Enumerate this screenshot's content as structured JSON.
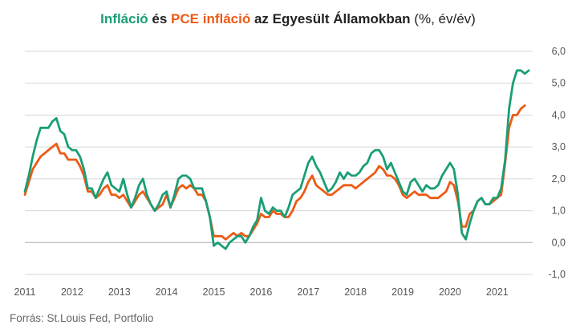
{
  "title": {
    "part1": "Infláció",
    "part2": " és ",
    "part3": "PCE infláció",
    "part4": " az Egyesült Államokban",
    "part5": " (%, év/év)"
  },
  "source": "Forrás: St.Louis Fed, Portfolio",
  "colors": {
    "cpi": "#1a9e77",
    "pce": "#ee5a14",
    "grid": "#d6d6d6",
    "zero": "#aaaaaa",
    "text": "#555555"
  },
  "chart_data": {
    "type": "line",
    "ylim": [
      -1,
      6
    ],
    "yticks": [
      "-1,0",
      "0,0",
      "1,0",
      "2,0",
      "3,0",
      "4,0",
      "5,0",
      "6,0"
    ],
    "ytick_values": [
      -1,
      0,
      1,
      2,
      3,
      4,
      5,
      6
    ],
    "xlim": [
      2011,
      2021.75
    ],
    "xticks": [
      "2011",
      "2012",
      "2013",
      "2014",
      "2015",
      "2016",
      "2017",
      "2018",
      "2019",
      "2020",
      "2021"
    ],
    "xtick_values": [
      2011,
      2012,
      2013,
      2014,
      2015,
      2016,
      2017,
      2018,
      2019,
      2020,
      2021
    ],
    "grid": true,
    "series": [
      {
        "name": "Infláció",
        "key": "cpi",
        "values": [
          [
            2011.0,
            1.6
          ],
          [
            2011.083,
            2.1
          ],
          [
            2011.167,
            2.7
          ],
          [
            2011.25,
            3.2
          ],
          [
            2011.333,
            3.6
          ],
          [
            2011.417,
            3.6
          ],
          [
            2011.5,
            3.6
          ],
          [
            2011.583,
            3.8
          ],
          [
            2011.667,
            3.9
          ],
          [
            2011.75,
            3.5
          ],
          [
            2011.833,
            3.4
          ],
          [
            2011.917,
            3.0
          ],
          [
            2012.0,
            2.9
          ],
          [
            2012.083,
            2.9
          ],
          [
            2012.167,
            2.7
          ],
          [
            2012.25,
            2.3
          ],
          [
            2012.333,
            1.7
          ],
          [
            2012.417,
            1.7
          ],
          [
            2012.5,
            1.4
          ],
          [
            2012.583,
            1.7
          ],
          [
            2012.667,
            2.0
          ],
          [
            2012.75,
            2.2
          ],
          [
            2012.833,
            1.8
          ],
          [
            2012.917,
            1.7
          ],
          [
            2013.0,
            1.6
          ],
          [
            2013.083,
            2.0
          ],
          [
            2013.167,
            1.5
          ],
          [
            2013.25,
            1.1
          ],
          [
            2013.333,
            1.4
          ],
          [
            2013.417,
            1.8
          ],
          [
            2013.5,
            2.0
          ],
          [
            2013.583,
            1.5
          ],
          [
            2013.667,
            1.2
          ],
          [
            2013.75,
            1.0
          ],
          [
            2013.833,
            1.2
          ],
          [
            2013.917,
            1.5
          ],
          [
            2014.0,
            1.6
          ],
          [
            2014.083,
            1.1
          ],
          [
            2014.167,
            1.5
          ],
          [
            2014.25,
            2.0
          ],
          [
            2014.333,
            2.1
          ],
          [
            2014.417,
            2.1
          ],
          [
            2014.5,
            2.0
          ],
          [
            2014.583,
            1.7
          ],
          [
            2014.667,
            1.7
          ],
          [
            2014.75,
            1.7
          ],
          [
            2014.833,
            1.3
          ],
          [
            2014.917,
            0.8
          ],
          [
            2015.0,
            -0.1
          ],
          [
            2015.083,
            0.0
          ],
          [
            2015.167,
            -0.1
          ],
          [
            2015.25,
            -0.2
          ],
          [
            2015.333,
            0.0
          ],
          [
            2015.417,
            0.1
          ],
          [
            2015.5,
            0.2
          ],
          [
            2015.583,
            0.2
          ],
          [
            2015.667,
            0.0
          ],
          [
            2015.75,
            0.2
          ],
          [
            2015.833,
            0.5
          ],
          [
            2015.917,
            0.7
          ],
          [
            2016.0,
            1.4
          ],
          [
            2016.083,
            1.0
          ],
          [
            2016.167,
            0.9
          ],
          [
            2016.25,
            1.1
          ],
          [
            2016.333,
            1.0
          ],
          [
            2016.417,
            1.0
          ],
          [
            2016.5,
            0.8
          ],
          [
            2016.583,
            1.1
          ],
          [
            2016.667,
            1.5
          ],
          [
            2016.75,
            1.6
          ],
          [
            2016.833,
            1.7
          ],
          [
            2016.917,
            2.1
          ],
          [
            2017.0,
            2.5
          ],
          [
            2017.083,
            2.7
          ],
          [
            2017.167,
            2.4
          ],
          [
            2017.25,
            2.2
          ],
          [
            2017.333,
            1.9
          ],
          [
            2017.417,
            1.6
          ],
          [
            2017.5,
            1.7
          ],
          [
            2017.583,
            1.9
          ],
          [
            2017.667,
            2.2
          ],
          [
            2017.75,
            2.0
          ],
          [
            2017.833,
            2.2
          ],
          [
            2017.917,
            2.1
          ],
          [
            2018.0,
            2.1
          ],
          [
            2018.083,
            2.2
          ],
          [
            2018.167,
            2.4
          ],
          [
            2018.25,
            2.5
          ],
          [
            2018.333,
            2.8
          ],
          [
            2018.417,
            2.9
          ],
          [
            2018.5,
            2.9
          ],
          [
            2018.583,
            2.7
          ],
          [
            2018.667,
            2.3
          ],
          [
            2018.75,
            2.5
          ],
          [
            2018.833,
            2.2
          ],
          [
            2018.917,
            1.9
          ],
          [
            2019.0,
            1.6
          ],
          [
            2019.083,
            1.5
          ],
          [
            2019.167,
            1.9
          ],
          [
            2019.25,
            2.0
          ],
          [
            2019.333,
            1.8
          ],
          [
            2019.417,
            1.6
          ],
          [
            2019.5,
            1.8
          ],
          [
            2019.583,
            1.7
          ],
          [
            2019.667,
            1.7
          ],
          [
            2019.75,
            1.8
          ],
          [
            2019.833,
            2.1
          ],
          [
            2019.917,
            2.3
          ],
          [
            2020.0,
            2.5
          ],
          [
            2020.083,
            2.3
          ],
          [
            2020.167,
            1.5
          ],
          [
            2020.25,
            0.3
          ],
          [
            2020.333,
            0.1
          ],
          [
            2020.417,
            0.6
          ],
          [
            2020.5,
            1.0
          ],
          [
            2020.583,
            1.3
          ],
          [
            2020.667,
            1.4
          ],
          [
            2020.75,
            1.2
          ],
          [
            2020.833,
            1.2
          ],
          [
            2020.917,
            1.4
          ],
          [
            2021.0,
            1.4
          ],
          [
            2021.083,
            1.7
          ],
          [
            2021.167,
            2.6
          ],
          [
            2021.25,
            4.2
          ],
          [
            2021.333,
            5.0
          ],
          [
            2021.417,
            5.4
          ],
          [
            2021.5,
            5.4
          ],
          [
            2021.583,
            5.3
          ],
          [
            2021.667,
            5.4
          ]
        ]
      },
      {
        "name": "PCE infláció",
        "key": "pce",
        "values": [
          [
            2011.0,
            1.5
          ],
          [
            2011.083,
            1.9
          ],
          [
            2011.167,
            2.3
          ],
          [
            2011.25,
            2.5
          ],
          [
            2011.333,
            2.7
          ],
          [
            2011.417,
            2.8
          ],
          [
            2011.5,
            2.9
          ],
          [
            2011.583,
            3.0
          ],
          [
            2011.667,
            3.1
          ],
          [
            2011.75,
            2.8
          ],
          [
            2011.833,
            2.8
          ],
          [
            2011.917,
            2.6
          ],
          [
            2012.0,
            2.6
          ],
          [
            2012.083,
            2.6
          ],
          [
            2012.167,
            2.4
          ],
          [
            2012.25,
            2.1
          ],
          [
            2012.333,
            1.6
          ],
          [
            2012.417,
            1.6
          ],
          [
            2012.5,
            1.4
          ],
          [
            2012.583,
            1.5
          ],
          [
            2012.667,
            1.7
          ],
          [
            2012.75,
            1.8
          ],
          [
            2012.833,
            1.5
          ],
          [
            2012.917,
            1.5
          ],
          [
            2013.0,
            1.4
          ],
          [
            2013.083,
            1.5
          ],
          [
            2013.167,
            1.3
          ],
          [
            2013.25,
            1.1
          ],
          [
            2013.333,
            1.3
          ],
          [
            2013.417,
            1.5
          ],
          [
            2013.5,
            1.6
          ],
          [
            2013.583,
            1.4
          ],
          [
            2013.667,
            1.2
          ],
          [
            2013.75,
            1.0
          ],
          [
            2013.833,
            1.1
          ],
          [
            2013.917,
            1.2
          ],
          [
            2014.0,
            1.5
          ],
          [
            2014.083,
            1.1
          ],
          [
            2014.167,
            1.4
          ],
          [
            2014.25,
            1.7
          ],
          [
            2014.333,
            1.8
          ],
          [
            2014.417,
            1.7
          ],
          [
            2014.5,
            1.8
          ],
          [
            2014.583,
            1.7
          ],
          [
            2014.667,
            1.5
          ],
          [
            2014.75,
            1.5
          ],
          [
            2014.833,
            1.3
          ],
          [
            2014.917,
            0.8
          ],
          [
            2015.0,
            0.2
          ],
          [
            2015.083,
            0.2
          ],
          [
            2015.167,
            0.2
          ],
          [
            2015.25,
            0.1
          ],
          [
            2015.333,
            0.2
          ],
          [
            2015.417,
            0.3
          ],
          [
            2015.5,
            0.2
          ],
          [
            2015.583,
            0.3
          ],
          [
            2015.667,
            0.2
          ],
          [
            2015.75,
            0.2
          ],
          [
            2015.833,
            0.4
          ],
          [
            2015.917,
            0.6
          ],
          [
            2016.0,
            0.9
          ],
          [
            2016.083,
            0.8
          ],
          [
            2016.167,
            0.8
          ],
          [
            2016.25,
            1.0
          ],
          [
            2016.333,
            0.9
          ],
          [
            2016.417,
            0.9
          ],
          [
            2016.5,
            0.8
          ],
          [
            2016.583,
            0.8
          ],
          [
            2016.667,
            1.0
          ],
          [
            2016.75,
            1.3
          ],
          [
            2016.833,
            1.4
          ],
          [
            2016.917,
            1.6
          ],
          [
            2017.0,
            1.9
          ],
          [
            2017.083,
            2.1
          ],
          [
            2017.167,
            1.8
          ],
          [
            2017.25,
            1.7
          ],
          [
            2017.333,
            1.6
          ],
          [
            2017.417,
            1.5
          ],
          [
            2017.5,
            1.5
          ],
          [
            2017.583,
            1.6
          ],
          [
            2017.667,
            1.7
          ],
          [
            2017.75,
            1.8
          ],
          [
            2017.833,
            1.8
          ],
          [
            2017.917,
            1.8
          ],
          [
            2018.0,
            1.7
          ],
          [
            2018.083,
            1.8
          ],
          [
            2018.167,
            1.9
          ],
          [
            2018.25,
            2.0
          ],
          [
            2018.333,
            2.1
          ],
          [
            2018.417,
            2.2
          ],
          [
            2018.5,
            2.4
          ],
          [
            2018.583,
            2.3
          ],
          [
            2018.667,
            2.1
          ],
          [
            2018.75,
            2.1
          ],
          [
            2018.833,
            2.0
          ],
          [
            2018.917,
            1.8
          ],
          [
            2019.0,
            1.5
          ],
          [
            2019.083,
            1.4
          ],
          [
            2019.167,
            1.5
          ],
          [
            2019.25,
            1.6
          ],
          [
            2019.333,
            1.5
          ],
          [
            2019.417,
            1.5
          ],
          [
            2019.5,
            1.5
          ],
          [
            2019.583,
            1.4
          ],
          [
            2019.667,
            1.4
          ],
          [
            2019.75,
            1.4
          ],
          [
            2019.833,
            1.5
          ],
          [
            2019.917,
            1.6
          ],
          [
            2020.0,
            1.9
          ],
          [
            2020.083,
            1.8
          ],
          [
            2020.167,
            1.3
          ],
          [
            2020.25,
            0.5
          ],
          [
            2020.333,
            0.5
          ],
          [
            2020.417,
            0.9
          ],
          [
            2020.5,
            1.0
          ],
          [
            2020.583,
            1.3
          ],
          [
            2020.667,
            1.4
          ],
          [
            2020.75,
            1.2
          ],
          [
            2020.833,
            1.2
          ],
          [
            2020.917,
            1.3
          ],
          [
            2021.0,
            1.4
          ],
          [
            2021.083,
            1.5
          ],
          [
            2021.167,
            2.5
          ],
          [
            2021.25,
            3.6
          ],
          [
            2021.333,
            4.0
          ],
          [
            2021.417,
            4.0
          ],
          [
            2021.5,
            4.2
          ],
          [
            2021.583,
            4.3
          ]
        ]
      }
    ]
  }
}
